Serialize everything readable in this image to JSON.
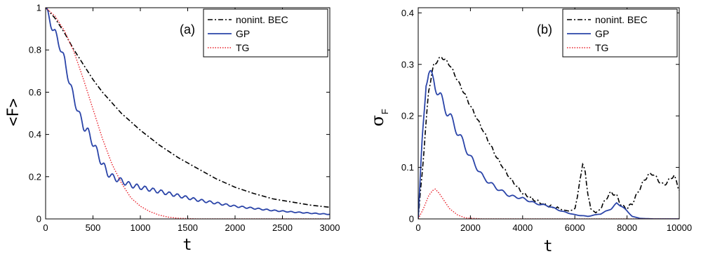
{
  "series_style": {
    "nonint": {
      "color": "#000000",
      "dash": "7 3 2 3",
      "width": 1.6
    },
    "GP": {
      "color": "#2a44a8",
      "dash": "",
      "width": 1.8
    },
    "TG": {
      "color": "#e8202a",
      "dash": "1.5 2",
      "width": 1.4
    }
  },
  "chart_data": [
    {
      "type": "line",
      "panel_label": "(a)",
      "xlabel": "t",
      "ylabel": "<F>",
      "xlim": [
        0,
        3000
      ],
      "ylim": [
        0,
        1
      ],
      "xticks": [
        0,
        500,
        1000,
        1500,
        2000,
        2500,
        3000
      ],
      "yticks": [
        0,
        0.2,
        0.4,
        0.6,
        0.8,
        1
      ],
      "ytick_labels": [
        "0",
        "0.2",
        "0.4",
        "0.6",
        "0.8",
        "1"
      ],
      "grid": false,
      "legend_position": "top-right",
      "series": [
        {
          "name": "nonint. BEC",
          "key": "nonint",
          "x": [
            0,
            100,
            200,
            300,
            400,
            500,
            600,
            700,
            800,
            900,
            1000,
            1200,
            1400,
            1600,
            1800,
            2000,
            2200,
            2400,
            2600,
            2800,
            3000
          ],
          "y": [
            1.0,
            0.95,
            0.88,
            0.8,
            0.73,
            0.66,
            0.6,
            0.55,
            0.5,
            0.46,
            0.42,
            0.35,
            0.29,
            0.24,
            0.19,
            0.15,
            0.12,
            0.095,
            0.08,
            0.065,
            0.055
          ]
        },
        {
          "name": "GP",
          "key": "GP",
          "x": [
            0,
            50,
            100,
            150,
            200,
            250,
            300,
            350,
            400,
            450,
            500,
            550,
            600,
            650,
            700,
            800,
            900,
            1000,
            1200,
            1400,
            1600,
            1800,
            2000,
            2200,
            2400,
            2600,
            2800,
            3000
          ],
          "y": [
            1.0,
            0.93,
            0.88,
            0.82,
            0.75,
            0.65,
            0.57,
            0.5,
            0.44,
            0.41,
            0.36,
            0.31,
            0.26,
            0.22,
            0.2,
            0.18,
            0.16,
            0.15,
            0.13,
            0.11,
            0.09,
            0.075,
            0.06,
            0.05,
            0.04,
            0.033,
            0.027,
            0.022
          ]
        },
        {
          "name": "TG",
          "key": "TG",
          "x": [
            0,
            100,
            200,
            300,
            400,
            500,
            600,
            700,
            800,
            900,
            1000,
            1100,
            1200,
            1300,
            1400,
            1600,
            2000,
            2500,
            3000
          ],
          "y": [
            1.0,
            0.96,
            0.89,
            0.79,
            0.66,
            0.52,
            0.38,
            0.26,
            0.17,
            0.1,
            0.06,
            0.035,
            0.018,
            0.008,
            0.003,
            0.0,
            0.0,
            0.0,
            0.0
          ]
        }
      ]
    },
    {
      "type": "line",
      "panel_label": "(b)",
      "xlabel": "t",
      "ylabel": "σF",
      "ylabel_main": "σ",
      "ylabel_sub": "F",
      "xlim": [
        0,
        10000
      ],
      "ylim": [
        0,
        0.41
      ],
      "xticks": [
        0,
        2000,
        4000,
        6000,
        8000,
        10000
      ],
      "yticks": [
        0,
        0.1,
        0.2,
        0.3,
        0.4
      ],
      "ytick_labels": [
        "0",
        "0.1",
        "0.2",
        "0.3",
        "0.4"
      ],
      "grid": false,
      "legend_position": "top-right",
      "series": [
        {
          "name": "nonint. BEC",
          "key": "nonint",
          "x": [
            0,
            200,
            400,
            600,
            800,
            900,
            1000,
            1200,
            1600,
            2000,
            2500,
            3000,
            3500,
            4000,
            4500,
            5000,
            5500,
            5800,
            6000,
            6100,
            6200,
            6300,
            6400,
            6500,
            6600,
            6800,
            7000,
            7200,
            7400,
            7600,
            7800,
            8000,
            8200,
            8400,
            8600,
            8800,
            9000,
            9200,
            9400,
            9600,
            9800,
            10000
          ],
          "y": [
            0.0,
            0.12,
            0.25,
            0.3,
            0.31,
            0.315,
            0.31,
            0.3,
            0.26,
            0.22,
            0.17,
            0.12,
            0.08,
            0.05,
            0.035,
            0.025,
            0.018,
            0.015,
            0.02,
            0.04,
            0.08,
            0.105,
            0.09,
            0.05,
            0.02,
            0.012,
            0.02,
            0.04,
            0.052,
            0.045,
            0.025,
            0.02,
            0.03,
            0.05,
            0.07,
            0.085,
            0.088,
            0.075,
            0.065,
            0.075,
            0.085,
            0.055
          ]
        },
        {
          "name": "GP",
          "key": "GP",
          "x": [
            0,
            150,
            300,
            400,
            500,
            600,
            800,
            1000,
            1200,
            1500,
            2000,
            2500,
            3000,
            3500,
            4000,
            4500,
            5000,
            5500,
            6000,
            6500,
            7000,
            7400,
            7600,
            7800,
            8000,
            8200,
            8500,
            9000,
            10000
          ],
          "y": [
            0.0,
            0.15,
            0.27,
            0.28,
            0.275,
            0.27,
            0.24,
            0.22,
            0.2,
            0.17,
            0.12,
            0.08,
            0.06,
            0.045,
            0.04,
            0.03,
            0.025,
            0.015,
            0.008,
            0.005,
            0.01,
            0.02,
            0.03,
            0.025,
            0.015,
            0.005,
            0.001,
            0.0,
            0.0
          ]
        },
        {
          "name": "TG",
          "key": "TG",
          "x": [
            0,
            200,
            400,
            550,
            650,
            800,
            1000,
            1200,
            1500,
            1800,
            2500,
            5000,
            8000,
            10000
          ],
          "y": [
            0.0,
            0.02,
            0.045,
            0.055,
            0.058,
            0.05,
            0.035,
            0.02,
            0.008,
            0.002,
            0.0,
            0.0,
            0.0,
            0.0
          ]
        }
      ]
    }
  ]
}
